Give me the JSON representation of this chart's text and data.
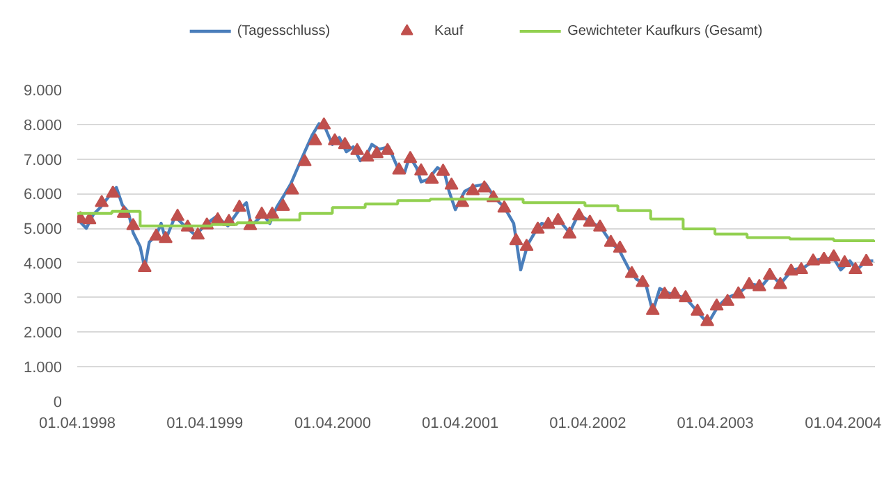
{
  "chart_data": {
    "type": "line",
    "xlim": [
      "1998-04-01",
      "2004-07-01"
    ],
    "ylim": [
      0,
      9000
    ],
    "xticks": [
      {
        "value": "1998-04-01",
        "label": "01.04.1998"
      },
      {
        "value": "1999-04-01",
        "label": "01.04.1999"
      },
      {
        "value": "2000-04-01",
        "label": "01.04.2000"
      },
      {
        "value": "2001-04-01",
        "label": "01.04.2001"
      },
      {
        "value": "2002-04-01",
        "label": "01.04.2002"
      },
      {
        "value": "2003-04-01",
        "label": "01.04.2003"
      },
      {
        "value": "2004-04-01",
        "label": "01.04.2004"
      }
    ],
    "yticks": [
      0,
      {
        "value": 1000,
        "label": "1.000"
      },
      {
        "value": 2000,
        "label": "2.000"
      },
      {
        "value": 3000,
        "label": "3.000"
      },
      {
        "value": 4000,
        "label": "4.000"
      },
      {
        "value": 5000,
        "label": "5.000"
      },
      {
        "value": 6000,
        "label": "6.000"
      },
      {
        "value": 7000,
        "label": "7.000"
      },
      {
        "value": 8000,
        "label": "8.000"
      },
      {
        "value": 9000,
        "label": "9.000"
      }
    ],
    "grid": "y",
    "legend": "top",
    "series": [
      {
        "name": "(Tagesschluss)",
        "type": "line",
        "color": "#4a7ebb",
        "marker": "none",
        "x": [
          "1998-04-01",
          "1998-04-27",
          "1998-05-17",
          "1998-06-06",
          "1998-07-02",
          "1998-07-22",
          "1998-08-08",
          "1998-08-25",
          "1998-09-08",
          "1998-09-28",
          "1998-10-11",
          "1998-10-24",
          "1998-11-13",
          "1998-11-27",
          "1998-12-10",
          "1999-01-06",
          "1999-02-02",
          "1999-03-05",
          "1999-04-07",
          "1999-05-04",
          "1999-06-06",
          "1999-07-09",
          "1999-07-29",
          "1999-08-12",
          "1999-09-15",
          "1999-10-04",
          "1999-10-24",
          "1999-11-13",
          "1999-12-03",
          "1999-12-23",
          "2000-01-12",
          "2000-02-02",
          "2000-02-22",
          "2000-03-11",
          "2000-03-31",
          "2000-04-20",
          "2000-05-10",
          "2000-05-30",
          "2000-06-19",
          "2000-07-09",
          "2000-07-22",
          "2000-08-12",
          "2000-09-08",
          "2000-10-04",
          "2000-10-24",
          "2000-11-07",
          "2000-11-27",
          "2000-12-10",
          "2000-12-30",
          "2001-01-26",
          "2001-02-15",
          "2001-02-28",
          "2001-03-18",
          "2001-04-14",
          "2001-05-10",
          "2001-06-13",
          "2001-07-09",
          "2001-08-05",
          "2001-09-01",
          "2001-09-21",
          "2001-10-11",
          "2001-10-31",
          "2001-11-20",
          "2001-12-16",
          "2002-01-06",
          "2002-02-08",
          "2002-03-05",
          "2002-04-07",
          "2002-05-10",
          "2002-06-06",
          "2002-07-02",
          "2002-07-29",
          "2002-08-18",
          "2002-09-14",
          "2002-10-04",
          "2002-10-24",
          "2002-11-20",
          "2002-12-10",
          "2003-01-06",
          "2003-02-09",
          "2003-03-11",
          "2003-04-07",
          "2003-05-04",
          "2003-06-06",
          "2003-07-09",
          "2003-08-12",
          "2003-09-08",
          "2003-10-04",
          "2003-11-07",
          "2003-12-10",
          "2004-01-06",
          "2004-02-09",
          "2004-03-05",
          "2004-03-25",
          "2004-04-20",
          "2004-05-10",
          "2004-06-06",
          "2004-06-26"
        ],
        "values": [
          5270,
          5000,
          5400,
          5600,
          5940,
          6180,
          5670,
          5470,
          4870,
          4470,
          3860,
          4600,
          4800,
          5140,
          4670,
          5340,
          5070,
          4800,
          5140,
          5340,
          5070,
          5540,
          5740,
          5070,
          5400,
          5140,
          5610,
          5940,
          6280,
          6750,
          7210,
          7680,
          8020,
          7890,
          7420,
          7620,
          7210,
          7350,
          6950,
          7150,
          7420,
          7280,
          7350,
          6750,
          6610,
          7080,
          6750,
          6340,
          6410,
          6750,
          6610,
          6070,
          5540,
          6070,
          6210,
          6280,
          5870,
          5610,
          5140,
          3800,
          4530,
          4870,
          5140,
          5070,
          5270,
          4870,
          5400,
          5200,
          5000,
          4600,
          4330,
          3800,
          3530,
          3390,
          2590,
          3260,
          3120,
          3060,
          2990,
          2590,
          2250,
          2720,
          2990,
          3120,
          3390,
          3330,
          3660,
          3390,
          3800,
          3860,
          4060,
          4130,
          4130,
          3800,
          4060,
          3800,
          4060,
          4060
        ]
      },
      {
        "name": "Kauf",
        "type": "scatter",
        "color": "#c0504d",
        "marker": "triangle",
        "x": [
          "1998-04-10",
          "1998-05-06",
          "1998-06-10",
          "1998-07-12",
          "1998-08-12",
          "1998-09-08",
          "1998-10-11",
          "1998-11-13",
          "1998-12-10",
          "1999-01-13",
          "1999-02-11",
          "1999-03-12",
          "1999-04-07",
          "1999-05-08",
          "1999-06-09",
          "1999-07-09",
          "1999-08-09",
          "1999-09-11",
          "1999-10-11",
          "1999-11-11",
          "1999-12-07",
          "2000-01-12",
          "2000-02-11",
          "2000-03-07",
          "2000-04-07",
          "2000-05-06",
          "2000-06-10",
          "2000-07-09",
          "2000-08-05",
          "2000-09-05",
          "2000-10-08",
          "2000-11-09",
          "2000-12-10",
          "2001-01-10",
          "2001-02-11",
          "2001-03-07",
          "2001-04-07",
          "2001-05-07",
          "2001-06-09",
          "2001-07-05",
          "2001-08-05",
          "2001-09-08",
          "2001-10-08",
          "2001-11-09",
          "2001-12-09",
          "2002-01-06",
          "2002-02-08",
          "2002-03-07",
          "2002-04-07",
          "2002-05-06",
          "2002-06-06",
          "2002-07-02",
          "2002-08-05",
          "2002-09-05",
          "2002-10-04",
          "2002-11-07",
          "2002-12-06",
          "2003-01-06",
          "2003-02-09",
          "2003-03-09",
          "2003-04-05",
          "2003-05-06",
          "2003-06-06",
          "2003-07-07",
          "2003-08-05",
          "2003-09-04",
          "2003-10-04",
          "2003-11-04",
          "2003-12-03",
          "2004-01-06",
          "2004-02-06",
          "2004-03-05",
          "2004-04-05",
          "2004-05-06",
          "2004-06-06"
        ],
        "values": [
          5270,
          5240,
          5740,
          6010,
          5430,
          5070,
          3860,
          4770,
          4700,
          5340,
          5030,
          4800,
          5090,
          5240,
          5190,
          5600,
          5070,
          5400,
          5400,
          5630,
          6100,
          6920,
          7520,
          7980,
          7520,
          7410,
          7240,
          7050,
          7150,
          7240,
          6680,
          7010,
          6650,
          6410,
          6640,
          6240,
          5740,
          6080,
          6160,
          5880,
          5580,
          4640,
          4470,
          4970,
          5110,
          5220,
          4830,
          5360,
          5170,
          5030,
          4590,
          4420,
          3690,
          3430,
          2620,
          3090,
          3090,
          2990,
          2600,
          2300,
          2750,
          2880,
          3100,
          3370,
          3310,
          3640,
          3370,
          3760,
          3800,
          4050,
          4100,
          4170,
          4000,
          3800,
          4040
        ]
      },
      {
        "name": "Gewichteter Kaufkurs (Gesamt)",
        "type": "step",
        "color": "#92d050",
        "marker": "none",
        "x": [
          "1998-04-01",
          "1998-07-09",
          "1998-09-28",
          "1999-04-21",
          "1999-07-02",
          "1999-10-04",
          "1999-12-29",
          "2000-03-31",
          "2000-07-03",
          "2000-10-04",
          "2001-01-05",
          "2001-09-28",
          "2002-03-24",
          "2002-06-26",
          "2002-09-28",
          "2002-12-30",
          "2003-03-31",
          "2003-07-01",
          "2003-10-31",
          "2004-03-05",
          "2004-06-28"
        ],
        "values": [
          5430,
          5490,
          5070,
          5110,
          5160,
          5240,
          5430,
          5600,
          5700,
          5800,
          5840,
          5740,
          5650,
          5510,
          5270,
          4980,
          4830,
          4730,
          4690,
          4640,
          4600
        ]
      }
    ]
  }
}
